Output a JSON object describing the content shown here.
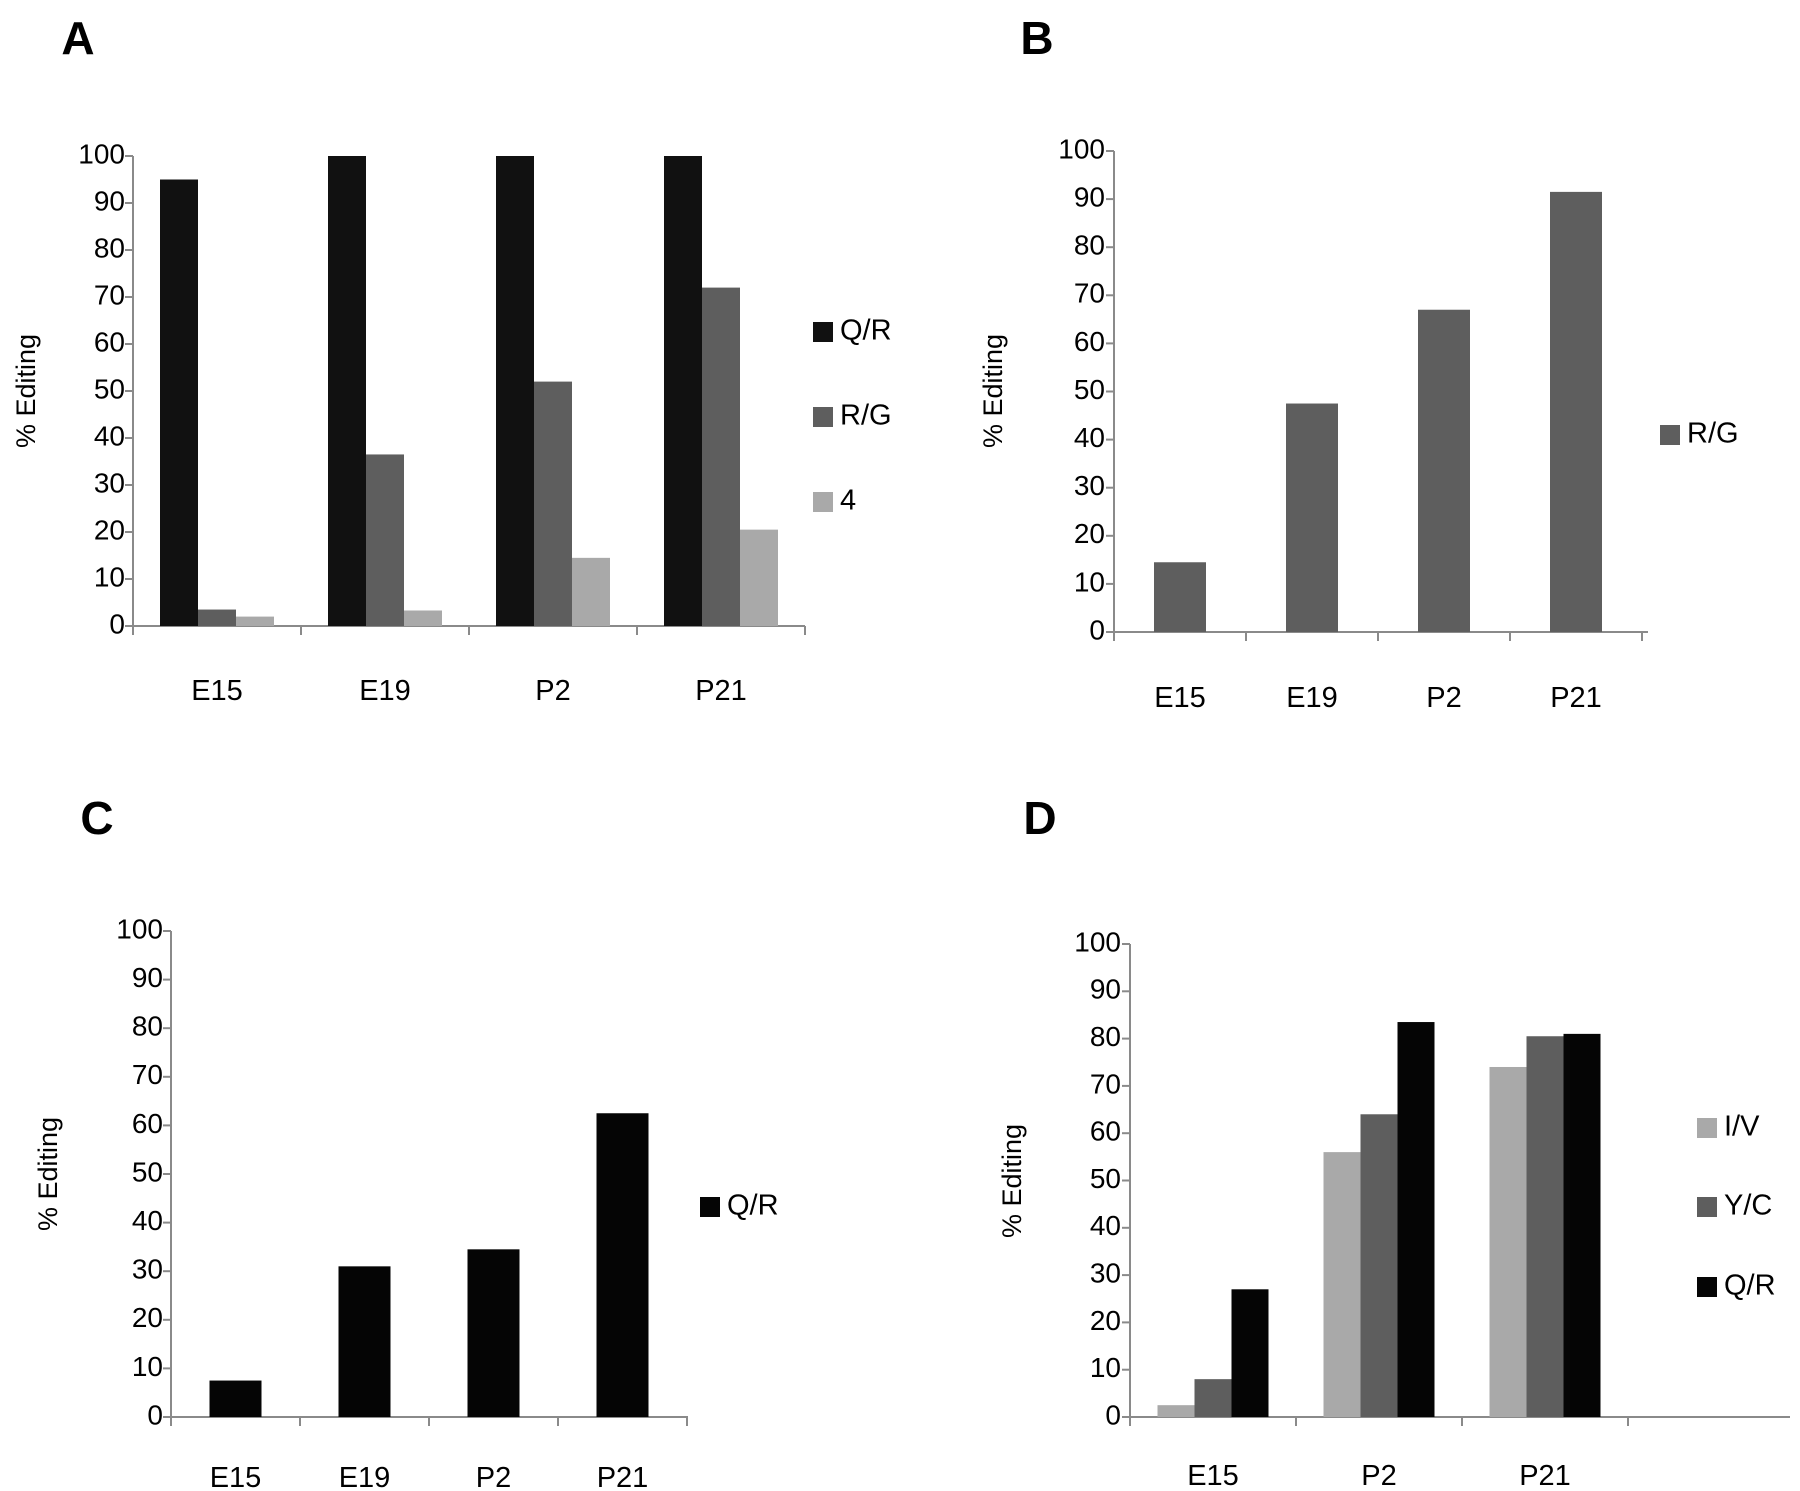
{
  "chart_data": [
    {
      "panel": "A",
      "type": "bar",
      "categories": [
        "E15",
        "E19",
        "P2",
        "P21"
      ],
      "series": [
        {
          "name": "Q/R",
          "color": "#111111",
          "values": [
            95,
            100,
            100,
            100
          ]
        },
        {
          "name": "R/G",
          "color": "#5e5e5e",
          "values": [
            3.5,
            36.5,
            52,
            72
          ]
        },
        {
          "name": "4",
          "color": "#a9a9a9",
          "values": [
            2,
            3.3,
            14.5,
            20.5
          ]
        }
      ],
      "yticks": [
        "0",
        "10",
        "20",
        "30",
        "40",
        "50",
        "60",
        "70",
        "80",
        "90",
        "100"
      ],
      "ylabel": "% Editing",
      "ylim": [
        0,
        100
      ],
      "legend": "right"
    },
    {
      "panel": "B",
      "type": "bar",
      "categories": [
        "E15",
        "E19",
        "P2",
        "P21"
      ],
      "series": [
        {
          "name": "R/G",
          "color": "#5e5e5e",
          "values": [
            14.5,
            47.5,
            67,
            91.5
          ]
        }
      ],
      "yticks": [
        "0",
        "10",
        "20",
        "30",
        "40",
        "50",
        "60",
        "70",
        "80",
        "90",
        "100"
      ],
      "ylabel": "% Editing",
      "ylim": [
        0,
        100
      ],
      "legend": "right"
    },
    {
      "panel": "C",
      "type": "bar",
      "categories": [
        "E15",
        "E19",
        "P2",
        "P21"
      ],
      "series": [
        {
          "name": "Q/R",
          "color": "#050505",
          "values": [
            7.5,
            31,
            34.5,
            62.5
          ]
        }
      ],
      "yticks": [
        "0",
        "10",
        "20",
        "30",
        "40",
        "50",
        "60",
        "70",
        "80",
        "90",
        "100"
      ],
      "ylabel": "% Editing",
      "ylim": [
        0,
        100
      ],
      "legend": "right"
    },
    {
      "panel": "D",
      "type": "bar",
      "categories": [
        "E15",
        "P2",
        "P21"
      ],
      "series": [
        {
          "name": "I/V",
          "color": "#a9a9a9",
          "values": [
            2.5,
            56,
            74
          ]
        },
        {
          "name": "Y/C",
          "color": "#5e5e5e",
          "values": [
            8,
            64,
            80.5
          ]
        },
        {
          "name": "Q/R",
          "color": "#050505",
          "values": [
            27,
            83.5,
            81
          ]
        }
      ],
      "yticks": [
        "0",
        "10",
        "20",
        "30",
        "40",
        "50",
        "60",
        "70",
        "80",
        "90",
        "100"
      ],
      "ylabel": "% Editing",
      "ylim": [
        0,
        100
      ],
      "legend": "right"
    }
  ]
}
